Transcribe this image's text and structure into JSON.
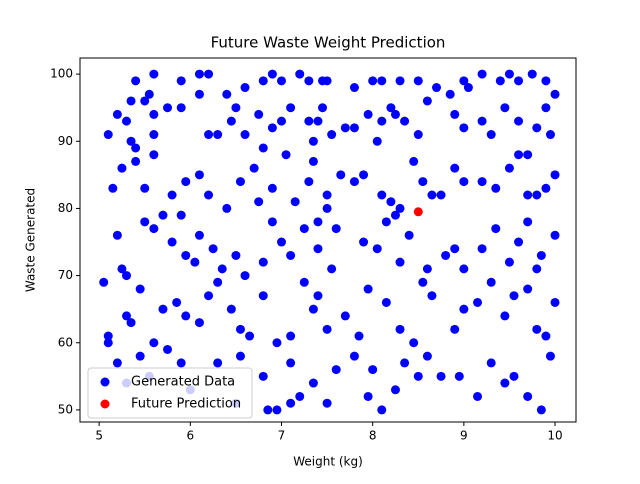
{
  "chart_data": {
    "type": "scatter",
    "title": "Future Waste Weight Prediction",
    "x_label": "Weight (kg)",
    "y_label": "Waste Generated",
    "xlim": [
      4.79,
      10.23
    ],
    "ylim": [
      48.2,
      102.4
    ],
    "xticks": [
      5,
      6,
      7,
      8,
      9,
      10
    ],
    "yticks": [
      50,
      60,
      70,
      80,
      90,
      100
    ],
    "legend_position": "lower left",
    "series": [
      {
        "name": "Generated Data",
        "color": "#0000ff",
        "x": [
          5.6,
          6.1,
          6.2,
          6.1,
          5.9,
          5.4,
          6.4,
          6.6,
          6.8,
          6.9,
          7.0,
          7.2,
          7.3,
          7.45,
          7.5,
          7.8,
          8.0,
          8.1,
          8.3,
          8.5,
          8.7,
          8.85,
          9.0,
          9.05,
          9.2,
          9.4,
          9.5,
          9.6,
          9.75,
          9.9,
          10.0,
          5.5,
          5.35,
          5.55,
          5.1,
          5.2,
          5.3,
          5.35,
          5.4,
          5.6,
          5.6,
          5.75,
          5.9,
          6.2,
          6.3,
          6.45,
          6.5,
          6.6,
          6.75,
          6.8,
          6.9,
          7.1,
          7.3,
          7.4,
          7.45,
          7.55,
          7.7,
          7.8,
          7.95,
          8.1,
          8.2,
          8.25,
          8.35,
          8.5,
          8.6,
          8.9,
          9.0,
          9.2,
          9.3,
          9.45,
          9.6,
          9.7,
          9.8,
          9.9,
          9.95,
          8.05,
          7.35,
          7.0,
          5.15,
          5.25,
          5.4,
          5.5,
          5.6,
          5.8,
          5.9,
          5.95,
          6.1,
          6.2,
          6.4,
          6.55,
          6.7,
          6.75,
          6.9,
          7.05,
          7.3,
          7.35,
          7.5,
          7.65,
          7.8,
          7.9,
          8.1,
          8.2,
          8.3,
          8.45,
          8.55,
          8.65,
          8.75,
          8.9,
          9.0,
          9.2,
          9.35,
          9.5,
          9.6,
          9.7,
          9.8,
          10.0,
          9.9,
          7.15,
          7.5,
          5.2,
          5.25,
          5.3,
          5.5,
          5.6,
          5.7,
          5.8,
          5.95,
          6.05,
          6.1,
          6.25,
          6.35,
          6.5,
          6.6,
          6.8,
          6.9,
          7.0,
          7.1,
          7.25,
          7.4,
          7.55,
          7.6,
          7.9,
          8.05,
          8.15,
          8.3,
          8.4,
          8.6,
          8.8,
          8.9,
          9.0,
          9.2,
          9.35,
          9.5,
          9.6,
          9.7,
          9.8,
          10.0,
          9.85,
          8.25,
          7.4,
          5.05,
          5.1,
          5.3,
          5.35,
          5.45,
          5.6,
          5.7,
          5.85,
          5.95,
          6.1,
          6.2,
          6.3,
          6.45,
          6.55,
          6.65,
          6.8,
          6.95,
          7.1,
          7.25,
          7.4,
          7.5,
          7.7,
          7.85,
          7.95,
          8.15,
          8.3,
          8.45,
          8.55,
          8.65,
          8.9,
          9.0,
          9.15,
          9.3,
          9.45,
          9.55,
          9.7,
          9.8,
          10.0,
          9.9,
          7.35,
          5.1,
          5.2,
          5.3,
          5.45,
          5.55,
          5.75,
          5.9,
          6.0,
          6.3,
          6.5,
          6.55,
          6.8,
          6.85,
          6.95,
          7.1,
          7.2,
          7.35,
          7.5,
          7.6,
          7.8,
          7.95,
          8.1,
          8.25,
          8.35,
          8.5,
          8.6,
          8.75,
          8.95,
          9.15,
          9.3,
          9.45,
          9.55,
          9.7,
          9.85,
          9.95,
          7.1,
          8.0
        ],
        "y": [
          100,
          100,
          100,
          97,
          99,
          99,
          97,
          98,
          99,
          100,
          99,
          100,
          99,
          99,
          99,
          98,
          99,
          99,
          99,
          99,
          98,
          97,
          99,
          98,
          100,
          99,
          100,
          99,
          100,
          99,
          97,
          96,
          96,
          97,
          91,
          94,
          93,
          90,
          89,
          94,
          91,
          95,
          95,
          91,
          91,
          93,
          95,
          91,
          94,
          89,
          92,
          95,
          93,
          93,
          95,
          91,
          92,
          92,
          94,
          93,
          95,
          94,
          93,
          91,
          96,
          94,
          92,
          93,
          91,
          95,
          93,
          88,
          92,
          95,
          91,
          90,
          90,
          93,
          83,
          86,
          87,
          83,
          88,
          82,
          79,
          84,
          85,
          82,
          80,
          84,
          86,
          81,
          83,
          88,
          84,
          87,
          82,
          85,
          84,
          85,
          82,
          81,
          80,
          87,
          84,
          82,
          82,
          86,
          84,
          84,
          83,
          86,
          88,
          82,
          82,
          85,
          83,
          81,
          80,
          76,
          71,
          70,
          78,
          77,
          79,
          75,
          73,
          72,
          76,
          74,
          71,
          73,
          70,
          72,
          78,
          75,
          73,
          77,
          74,
          71,
          77,
          75,
          74,
          78,
          72,
          76,
          71,
          73,
          74,
          71,
          74,
          77,
          72,
          75,
          78,
          71,
          76,
          73,
          79,
          78,
          69,
          61,
          64,
          63,
          68,
          60,
          65,
          66,
          64,
          63,
          67,
          69,
          65,
          62,
          61,
          67,
          60,
          61,
          69,
          67,
          62,
          64,
          61,
          68,
          66,
          62,
          60,
          69,
          67,
          62,
          65,
          66,
          69,
          64,
          67,
          68,
          62,
          66,
          61,
          65,
          60,
          57,
          54,
          58,
          55,
          59,
          57,
          53,
          57,
          51,
          58,
          55,
          50,
          50,
          57,
          52,
          54,
          51,
          56,
          58,
          52,
          50,
          53,
          57,
          55,
          58,
          55,
          55,
          52,
          57,
          54,
          55,
          52,
          50,
          58,
          51,
          56
        ]
      },
      {
        "name": "Future Prediction",
        "color": "#ff0000",
        "x": [
          8.5
        ],
        "y": [
          79.5
        ]
      }
    ]
  }
}
